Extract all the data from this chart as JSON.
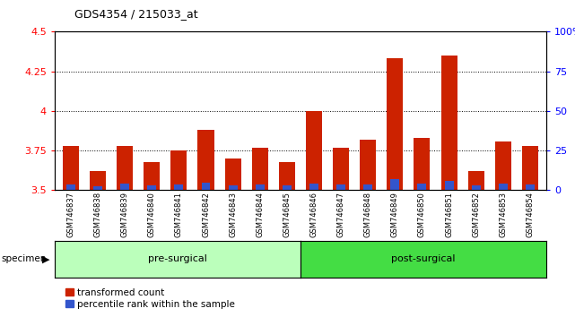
{
  "title": "GDS4354 / 215033_at",
  "samples": [
    "GSM746837",
    "GSM746838",
    "GSM746839",
    "GSM746840",
    "GSM746841",
    "GSM746842",
    "GSM746843",
    "GSM746844",
    "GSM746845",
    "GSM746846",
    "GSM746847",
    "GSM746848",
    "GSM746849",
    "GSM746850",
    "GSM746851",
    "GSM746852",
    "GSM746853",
    "GSM746854"
  ],
  "red_values": [
    3.78,
    3.62,
    3.78,
    3.68,
    3.75,
    3.88,
    3.7,
    3.77,
    3.68,
    4.0,
    3.77,
    3.82,
    4.33,
    3.83,
    4.35,
    3.62,
    3.81,
    3.78
  ],
  "blue_values": [
    0.035,
    0.025,
    0.04,
    0.03,
    0.038,
    0.045,
    0.033,
    0.038,
    0.033,
    0.042,
    0.038,
    0.038,
    0.07,
    0.042,
    0.06,
    0.028,
    0.042,
    0.038
  ],
  "ylim_left": [
    3.5,
    4.5
  ],
  "ylim_right": [
    0,
    100
  ],
  "yticks_left": [
    3.5,
    3.75,
    4.0,
    4.25,
    4.5
  ],
  "yticks_right": [
    0,
    25,
    50,
    75,
    100
  ],
  "ytick_labels_left": [
    "3.5",
    "3.75",
    "4",
    "4.25",
    "4.5"
  ],
  "ytick_labels_right": [
    "0",
    "25",
    "50",
    "75",
    "100%"
  ],
  "grid_values": [
    3.75,
    4.0,
    4.25
  ],
  "bar_color_red": "#cc2200",
  "bar_color_blue": "#3355cc",
  "pre_surgical_count": 9,
  "post_surgical_count": 9,
  "pre_color": "#bbffbb",
  "post_color": "#44dd44",
  "specimen_label": "specimen",
  "legend_red": "transformed count",
  "legend_blue": "percentile rank within the sample",
  "bg_color_plot": "#ffffff",
  "baseline": 3.5
}
